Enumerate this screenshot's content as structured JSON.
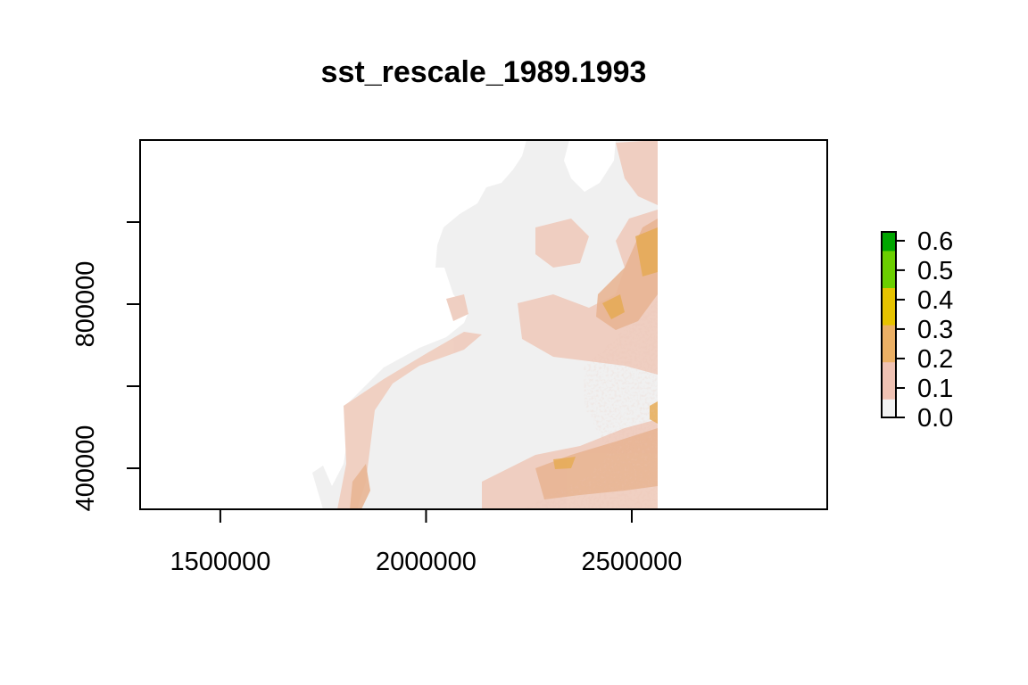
{
  "chart_data": {
    "type": "heatmap",
    "title": "sst_rescale_1989.1993",
    "xlabel": "",
    "ylabel": "",
    "x_ticks": [
      1500000,
      2000000,
      2500000
    ],
    "x_tick_labels": [
      "1500000",
      "2000000",
      "2500000"
    ],
    "y_ticks": [
      400000,
      600000,
      800000,
      1000000
    ],
    "y_tick_labels": [
      "400000",
      "",
      "800000",
      ""
    ],
    "xlim": [
      1305000,
      2975000
    ],
    "ylim": [
      300000,
      1200000
    ],
    "data_extent": {
      "x_max": 2562000
    },
    "legend": {
      "position": "right",
      "min": 0.0,
      "max": 0.63,
      "ticks": [
        0.0,
        0.1,
        0.2,
        0.3,
        0.4,
        0.5,
        0.6
      ],
      "tick_labels": [
        "0.0",
        "0.1",
        "0.2",
        "0.3",
        "0.4",
        "0.5",
        "0.6"
      ],
      "colors": [
        "#f2f2f2",
        "#efc2b3",
        "#ebb065",
        "#e6c300",
        "#6bcf00",
        "#00a600"
      ]
    },
    "fill_colors": {
      "background_cell": "#f0f0f0",
      "low": "#f0d0c4",
      "medium": "#e9b494",
      "high": "#e6aa50"
    }
  }
}
